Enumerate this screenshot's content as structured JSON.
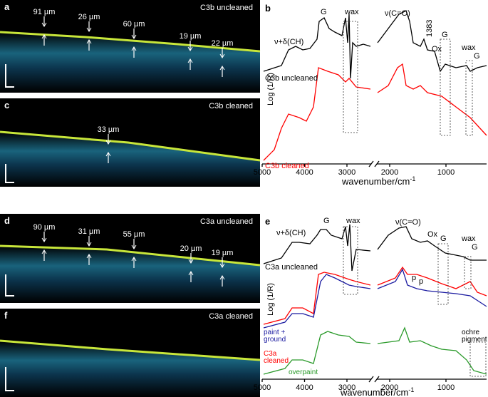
{
  "panels": [
    {
      "letter": "a",
      "title": "C3b uncleaned",
      "annotations": [
        "91 µm",
        "26 µm",
        "60 µm",
        "19 µm",
        "22 µm"
      ]
    },
    {
      "letter": "c",
      "title": "C3b cleaned",
      "annotations": [
        "33 µm"
      ]
    },
    {
      "letter": "d",
      "title": "C3a uncleaned",
      "annotations": [
        "90 µm",
        "31 µm",
        "55 µm",
        "20 µm",
        "19 µm"
      ]
    },
    {
      "letter": "f",
      "title": "C3a cleaned"
    }
  ],
  "spectra": [
    {
      "letter": "b",
      "y_label": "Log (1/R)",
      "x_label": "wavenumber/cm",
      "x_label_sup": "-1",
      "xticks": [
        5000,
        4000,
        3000,
        2000,
        1000
      ],
      "labels": [
        "ν+δ(CH)",
        "G",
        "wax",
        "ν(C=O)",
        "1383",
        "Ox",
        "G",
        "wax",
        "G"
      ],
      "traces": [
        {
          "name": "C3b uncleaned",
          "color": "#000000"
        },
        {
          "name": "C3b cleaned",
          "color": "#ff0000"
        }
      ]
    },
    {
      "letter": "e",
      "y_label": "Log (1/R)",
      "x_label": "wavenumber/cm",
      "x_label_sup": "-1",
      "xticks": [
        5000,
        4000,
        3000,
        2000,
        1000
      ],
      "labels": [
        "ν+δ(CH)",
        "G",
        "wax",
        "ν(C=O)",
        "Ox",
        "G",
        "wax",
        "G",
        "p",
        "p",
        "ochre pigment"
      ],
      "traces": [
        {
          "name": "C3a uncleaned",
          "color": "#000000"
        },
        {
          "name": "paint + ground",
          "color": "#1a1aa0"
        },
        {
          "name": "C3a cleaned",
          "color": "#ff0000"
        },
        {
          "name": "overpaint",
          "color": "#2a9a2a"
        }
      ]
    }
  ]
}
